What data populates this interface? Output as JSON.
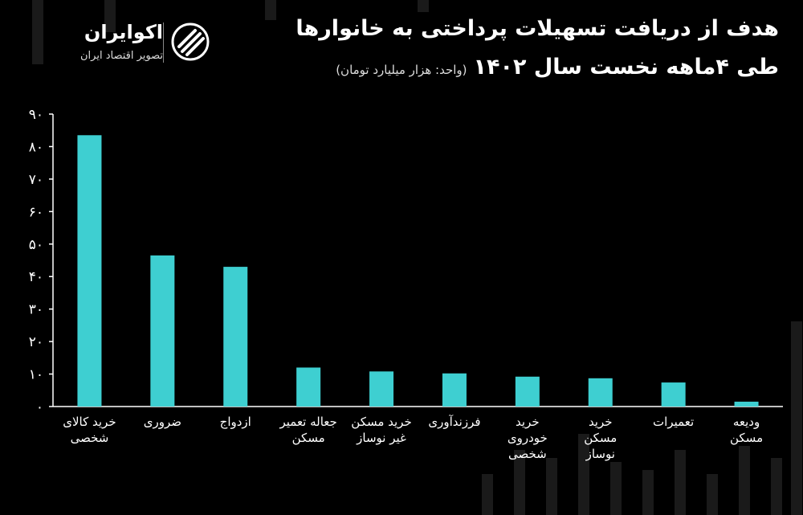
{
  "header": {
    "title_line1": "هدف از دریافت تسهیلات پرداختی به خانوارها",
    "title_line2": "طی ۴ماهه نخست سال ۱۴۰۲",
    "unit_note": "(واحد: هزار میلیارد تومان)"
  },
  "brand": {
    "name": "اکوایران",
    "tagline": "تصویر اقتصاد ایران",
    "logo_icon": "ecoiran-logo-icon"
  },
  "colors": {
    "bar": "#3ecfd1",
    "axis": "#ffffff",
    "background": "#000000"
  },
  "chart_data": {
    "type": "bar",
    "title": "هدف از دریافت تسهیلات پرداختی به خانوارها طی ۴ماهه نخست سال ۱۴۰۲",
    "subtitle": "(واحد: هزار میلیارد تومان)",
    "xlabel": "",
    "ylabel": "",
    "ylim": [
      0,
      90
    ],
    "yticks": [
      0,
      10,
      20,
      30,
      40,
      50,
      60,
      70,
      80,
      90
    ],
    "ytick_labels": [
      "۰",
      "۱۰",
      "۲۰",
      "۳۰",
      "۴۰",
      "۵۰",
      "۶۰",
      "۷۰",
      "۸۰",
      "۹۰"
    ],
    "grid": false,
    "categories": [
      [
        "خرید کالای",
        "شخصی"
      ],
      [
        "ضروری"
      ],
      [
        "ازدواج"
      ],
      [
        "جعاله تعمیر",
        "مسکن"
      ],
      [
        "خرید مسکن",
        "غیر نوساز"
      ],
      [
        "فرزندآوری"
      ],
      [
        "خرید",
        "خودروی",
        "شخصی"
      ],
      [
        "خرید",
        "مسکن",
        "نوساز"
      ],
      [
        "تعمیرات"
      ],
      [
        "ودیعه",
        "مسکن"
      ]
    ],
    "values": [
      83.5,
      46.5,
      43,
      12,
      10.8,
      10.2,
      9.2,
      8.7,
      7.4,
      1.5
    ]
  }
}
